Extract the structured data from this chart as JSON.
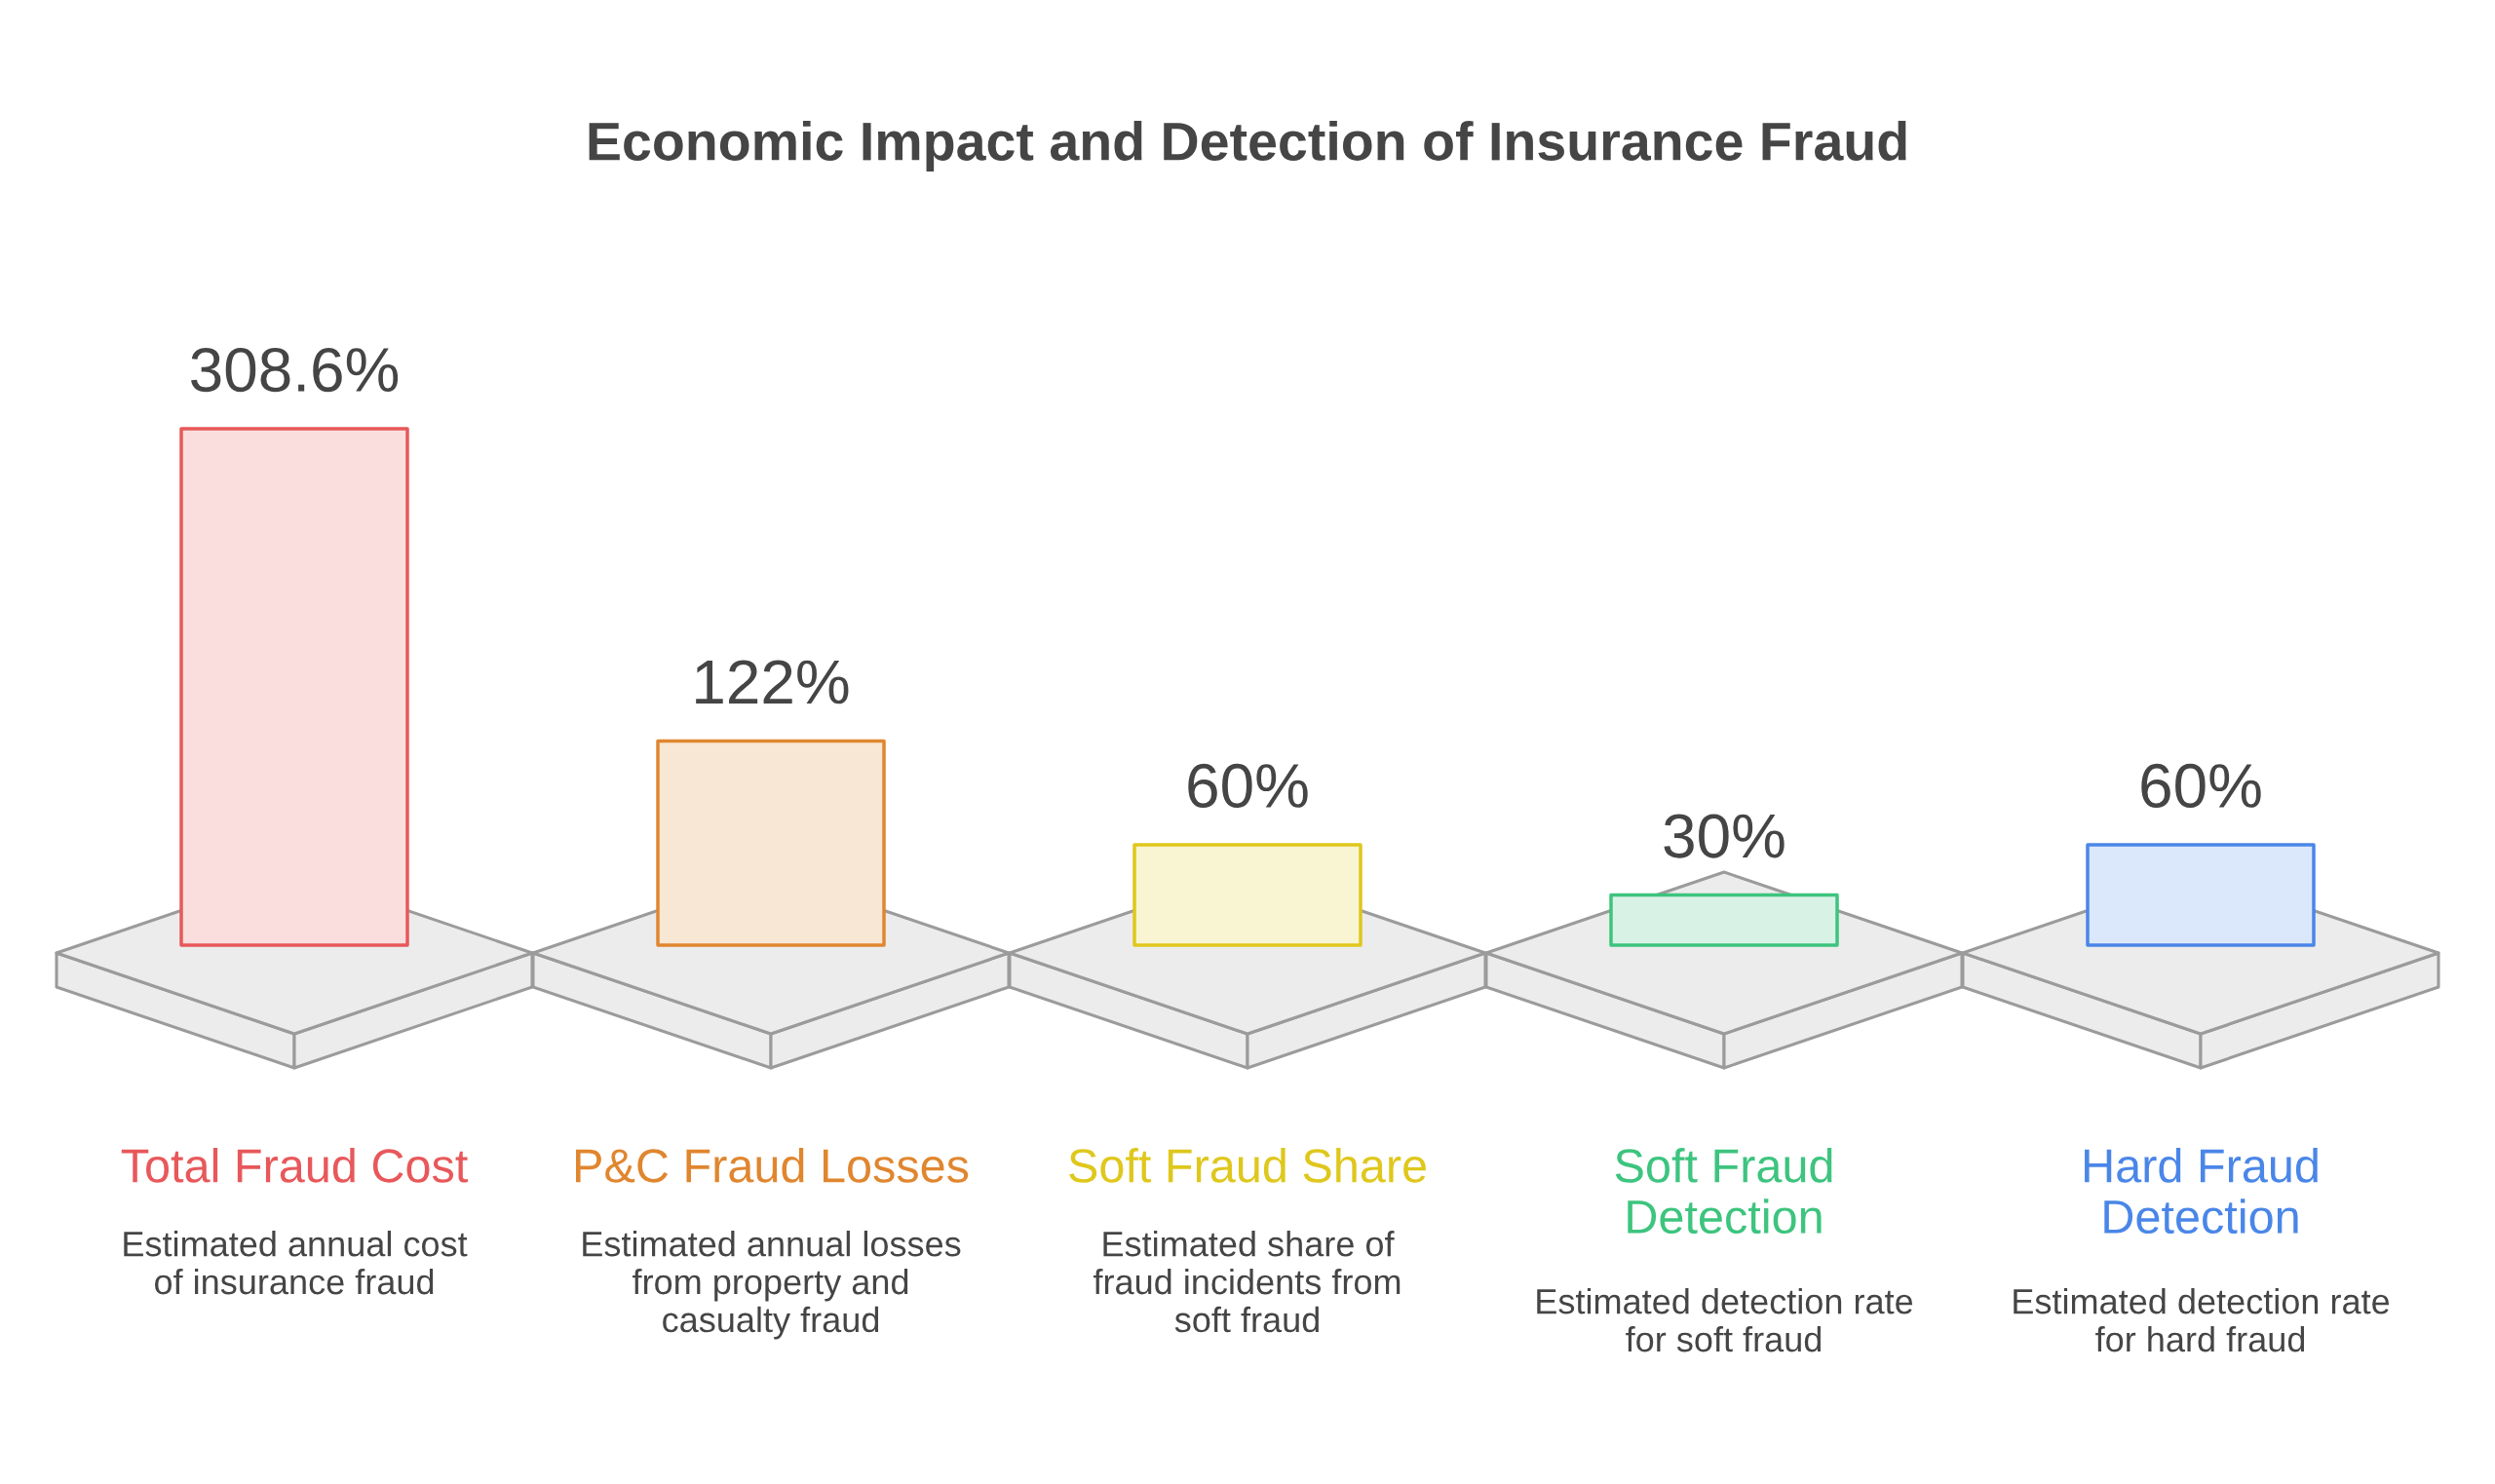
{
  "chart_data": {
    "type": "bar",
    "title": "Economic Impact and Detection of Insurance Fraud",
    "categories": [
      "Total Fraud Cost",
      "P&C Fraud Losses",
      "Soft Fraud Share",
      "Soft Fraud\nDetection",
      "Hard Fraud\nDetection"
    ],
    "values": [
      308.6,
      122,
      60,
      30,
      60
    ],
    "colors": [
      "#e8585a",
      "#e0862f",
      "#dfc71c",
      "#3dc47e",
      "#4a86e8"
    ],
    "value_labels": [
      "308.6%",
      "122%",
      "60%",
      "30%",
      "60%"
    ],
    "annotations": [
      "Estimated annual cost\nof insurance fraud",
      "Estimated annual losses\nfrom property and\ncasualty fraud",
      "Estimated share of\nfraud incidents from\nsoft fraud",
      "Estimated detection rate\nfor soft fraud",
      "Estimated detection rate\nfor hard fraud"
    ]
  }
}
